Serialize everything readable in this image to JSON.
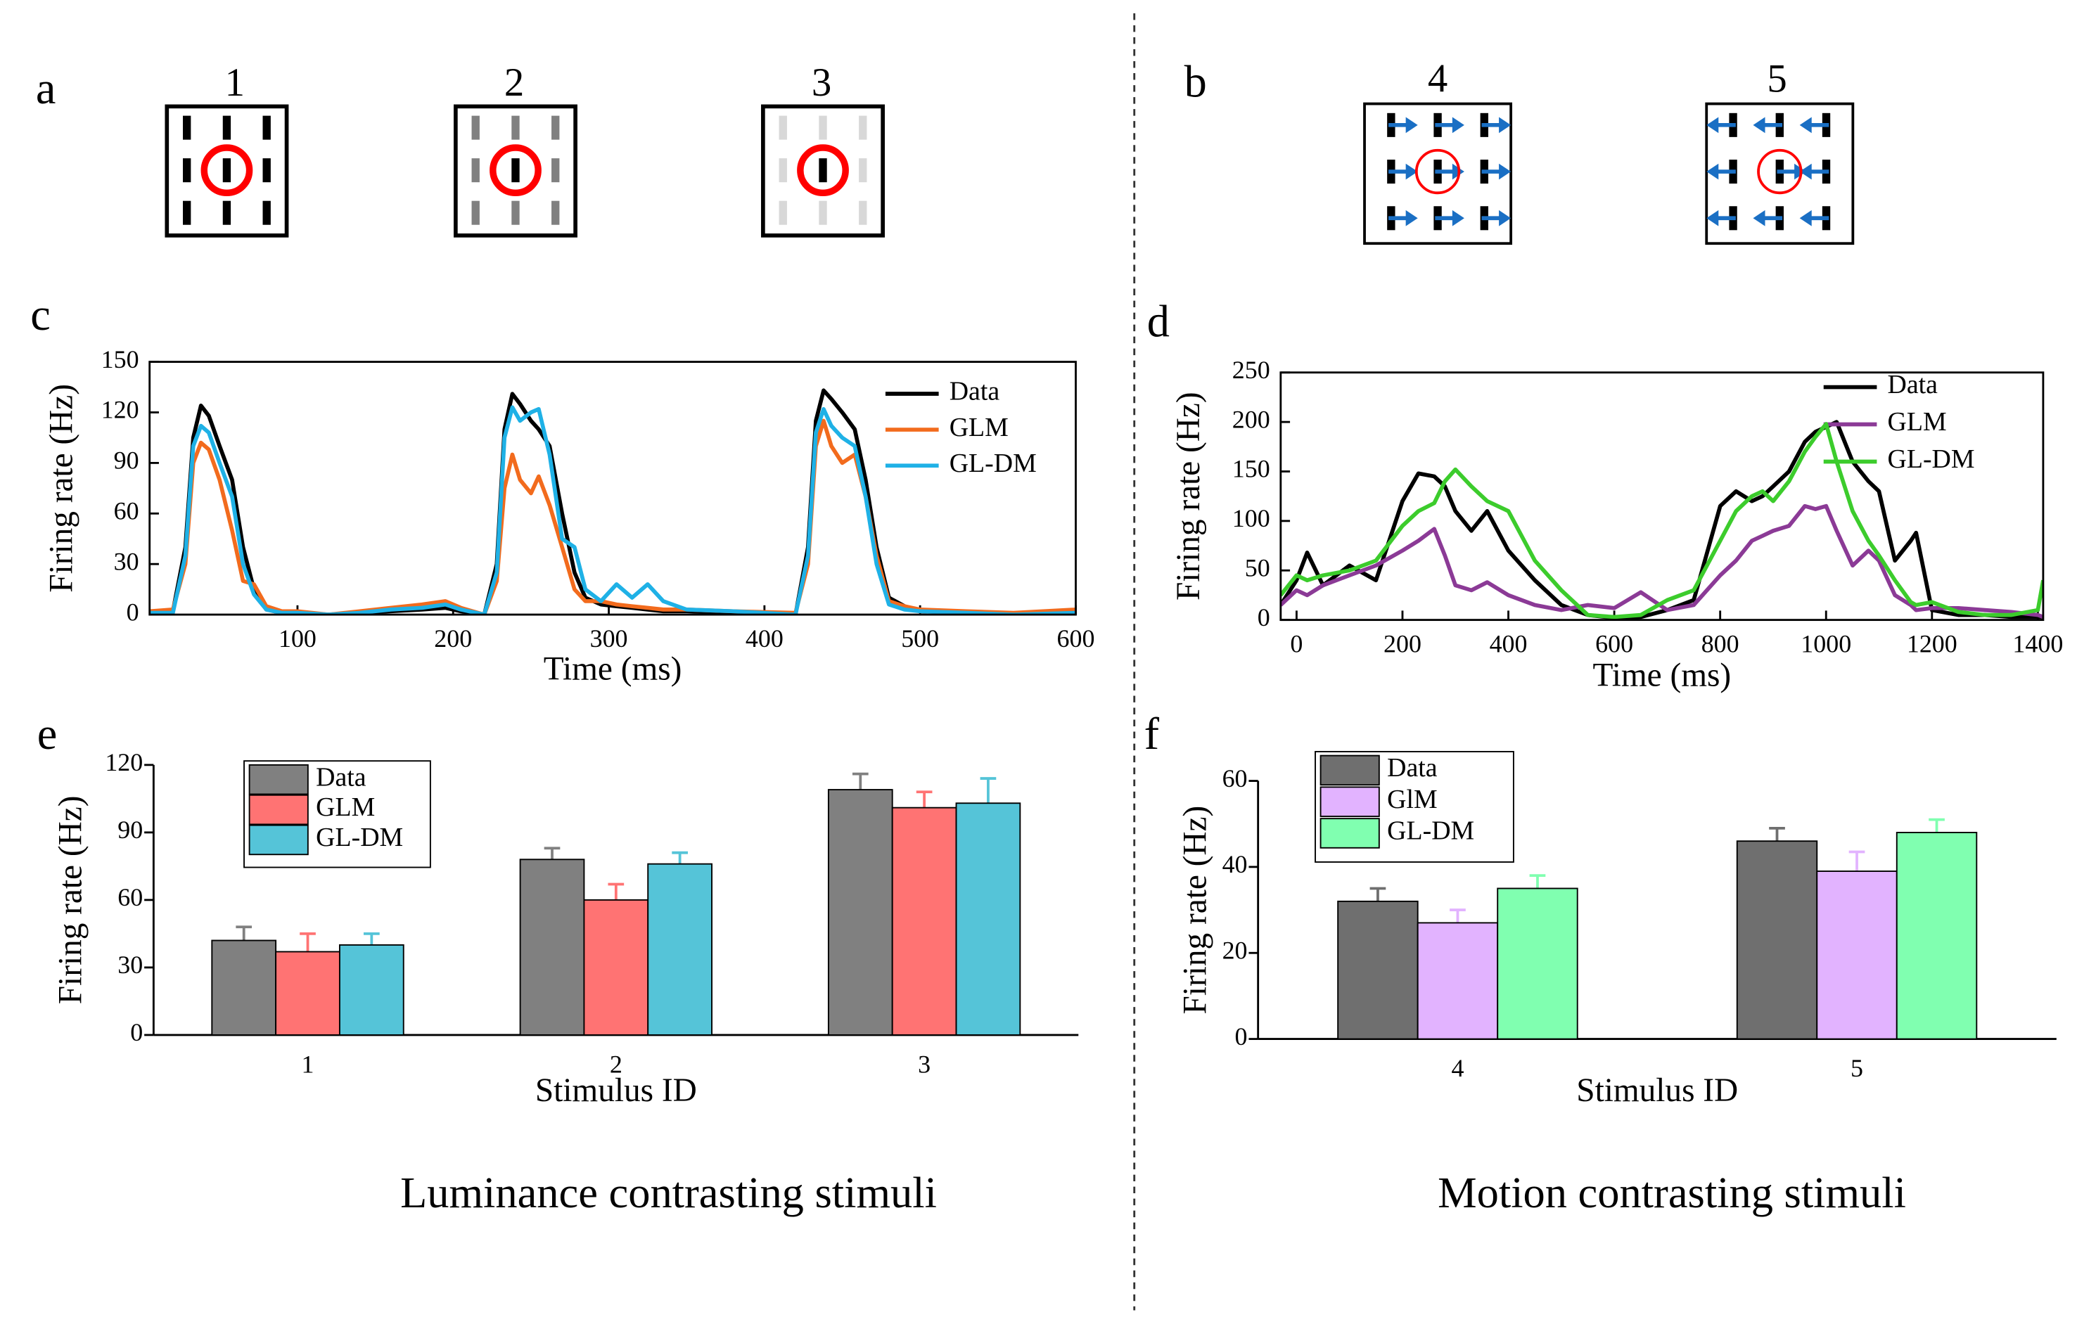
{
  "panel_labels": [
    "a",
    "b",
    "c",
    "d",
    "e",
    "f"
  ],
  "stimulus_ids": [
    "1",
    "2",
    "3",
    "4",
    "5"
  ],
  "captions": [
    "Luminance contrasting stimuli",
    "Motion contrasting stimuli"
  ],
  "chart_data": [
    {
      "type": "line",
      "xlabel": "Time (ms)",
      "ylabel": "Firing rate (Hz)",
      "xlim": [
        5,
        600
      ],
      "ylim": [
        0,
        150
      ],
      "xticks": [
        100,
        200,
        300,
        400,
        500,
        600
      ],
      "yticks": [
        0,
        30,
        60,
        90,
        120,
        150
      ],
      "x": [
        5,
        20,
        28,
        33,
        38,
        43,
        50,
        58,
        65,
        72,
        80,
        90,
        100,
        120,
        140,
        160,
        180,
        195,
        205,
        220,
        228,
        233,
        238,
        243,
        250,
        255,
        262,
        270,
        278,
        285,
        295,
        305,
        315,
        325,
        335,
        350,
        380,
        420,
        428,
        433,
        438,
        443,
        450,
        458,
        465,
        472,
        480,
        490,
        500,
        530,
        560,
        600
      ],
      "series": [
        {
          "name": "Data",
          "color": "#000000",
          "values": [
            1,
            2,
            40,
            105,
            124,
            118,
            100,
            80,
            40,
            15,
            3,
            1,
            1,
            0,
            1,
            2,
            3,
            4,
            2,
            0,
            30,
            110,
            131,
            125,
            115,
            110,
            100,
            60,
            25,
            10,
            6,
            5,
            4,
            3,
            2,
            2,
            1,
            0,
            40,
            115,
            133,
            128,
            120,
            110,
            80,
            40,
            10,
            5,
            2,
            1,
            0,
            2
          ]
        },
        {
          "name": "GLM",
          "color": "#f26b1d",
          "values": [
            2,
            3,
            30,
            90,
            102,
            98,
            80,
            50,
            20,
            18,
            5,
            2,
            2,
            0,
            2,
            4,
            6,
            8,
            4,
            0,
            20,
            75,
            95,
            80,
            72,
            82,
            65,
            40,
            15,
            8,
            8,
            6,
            5,
            4,
            3,
            3,
            2,
            1,
            30,
            100,
            115,
            100,
            90,
            95,
            70,
            35,
            8,
            5,
            3,
            2,
            1,
            3
          ]
        },
        {
          "name": "GL-DM",
          "color": "#1fb1e6",
          "values": [
            1,
            1,
            35,
            100,
            112,
            108,
            90,
            70,
            30,
            12,
            3,
            1,
            1,
            0,
            1,
            3,
            4,
            6,
            3,
            0,
            25,
            105,
            123,
            115,
            120,
            122,
            95,
            45,
            40,
            15,
            8,
            18,
            10,
            18,
            8,
            3,
            2,
            0,
            35,
            108,
            122,
            112,
            105,
            100,
            70,
            30,
            6,
            3,
            2,
            1,
            0,
            1
          ]
        }
      ]
    },
    {
      "type": "line",
      "xlabel": "Time (ms)",
      "ylabel": "Firing rate (Hz)",
      "xlim": [
        -30,
        1410
      ],
      "ylim": [
        0,
        250
      ],
      "xticks": [
        0,
        200,
        400,
        600,
        800,
        1000,
        1200,
        1400
      ],
      "yticks": [
        0,
        50,
        100,
        150,
        200,
        250
      ],
      "x": [
        -30,
        0,
        20,
        50,
        100,
        150,
        200,
        230,
        260,
        280,
        300,
        330,
        360,
        400,
        450,
        500,
        550,
        600,
        650,
        700,
        750,
        800,
        830,
        860,
        880,
        900,
        930,
        960,
        980,
        1000,
        1020,
        1050,
        1080,
        1100,
        1130,
        1160,
        1170,
        1200,
        1250,
        1300,
        1350,
        1400,
        1410
      ],
      "series": [
        {
          "name": "Data",
          "color": "#000000",
          "values": [
            15,
            40,
            68,
            35,
            55,
            40,
            120,
            148,
            145,
            135,
            110,
            90,
            110,
            70,
            40,
            15,
            5,
            2,
            3,
            10,
            20,
            115,
            130,
            120,
            125,
            135,
            150,
            180,
            190,
            195,
            200,
            160,
            140,
            130,
            60,
            80,
            88,
            10,
            5,
            5,
            3,
            3,
            3
          ]
        },
        {
          "name": "GLM",
          "color": "#8b3a96",
          "values": [
            15,
            30,
            25,
            35,
            45,
            55,
            70,
            80,
            92,
            65,
            35,
            30,
            38,
            25,
            15,
            10,
            15,
            12,
            28,
            10,
            15,
            45,
            60,
            80,
            85,
            90,
            95,
            115,
            112,
            115,
            90,
            55,
            70,
            60,
            25,
            15,
            10,
            12,
            12,
            10,
            8,
            5,
            3
          ]
        },
        {
          "name": "GL-DM",
          "color": "#3ccc2c",
          "values": [
            25,
            45,
            40,
            45,
            50,
            60,
            95,
            110,
            118,
            140,
            152,
            135,
            120,
            110,
            60,
            30,
            5,
            3,
            5,
            20,
            30,
            80,
            110,
            125,
            130,
            120,
            140,
            170,
            185,
            198,
            160,
            110,
            80,
            65,
            40,
            18,
            15,
            18,
            8,
            5,
            5,
            10,
            40
          ]
        }
      ]
    },
    {
      "type": "bar",
      "xlabel": "Stimulus ID",
      "ylabel": "Firing rate (Hz)",
      "ylim": [
        0,
        120
      ],
      "yticks": [
        0,
        30,
        60,
        90,
        120
      ],
      "categories": [
        "1",
        "2",
        "3"
      ],
      "series": [
        {
          "name": "Data",
          "color": "#808080",
          "values": [
            42,
            78,
            109
          ],
          "errors": [
            6,
            5,
            7
          ]
        },
        {
          "name": "GLM",
          "color": "#ff7373",
          "values": [
            37,
            60,
            101
          ],
          "errors": [
            8,
            7,
            7
          ]
        },
        {
          "name": "GL-DM",
          "color": "#55c4d8",
          "values": [
            40,
            76,
            103
          ],
          "errors": [
            5,
            5,
            11
          ]
        }
      ]
    },
    {
      "type": "bar",
      "xlabel": "Stimulus ID",
      "ylabel": "Firing rate (Hz)",
      "ylim": [
        0,
        60
      ],
      "yticks": [
        0,
        20,
        40,
        60
      ],
      "categories": [
        "4",
        "5"
      ],
      "series": [
        {
          "name": "Data",
          "color": "#6f6f6f",
          "values": [
            32,
            46
          ],
          "errors": [
            3,
            3
          ]
        },
        {
          "name": "GlM",
          "color": "#e2b3ff",
          "values": [
            27,
            39
          ],
          "errors": [
            3,
            4.5
          ]
        },
        {
          "name": "GL-DM",
          "color": "#80ffb0",
          "values": [
            35,
            48
          ],
          "errors": [
            3,
            3
          ]
        }
      ]
    }
  ]
}
